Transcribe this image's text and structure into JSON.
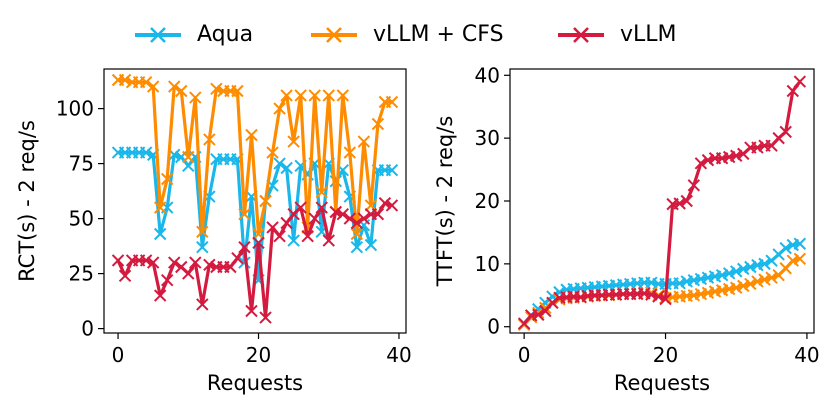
{
  "legend": {
    "items": [
      {
        "label": "Aqua",
        "color": "#1ab7ea"
      },
      {
        "label": "vLLM + CFS",
        "color": "#ff8c00"
      },
      {
        "label": "vLLM",
        "color": "#d41a3f"
      }
    ]
  },
  "chart_data": [
    {
      "type": "line",
      "marker": "x",
      "xlabel": "Requests",
      "ylabel": "RCT(s) - 2 req/s",
      "xlim": [
        -2,
        41
      ],
      "ylim": [
        -2,
        118
      ],
      "xticks": [
        0,
        20,
        40
      ],
      "yticks": [
        0,
        25,
        50,
        75,
        100
      ],
      "grid": false,
      "x": [
        0,
        1,
        2,
        3,
        4,
        5,
        6,
        7,
        8,
        9,
        10,
        11,
        12,
        13,
        14,
        15,
        16,
        17,
        18,
        19,
        20,
        21,
        22,
        23,
        24,
        25,
        26,
        27,
        28,
        29,
        30,
        31,
        32,
        33,
        34,
        35,
        36,
        37,
        38,
        39
      ],
      "series": [
        {
          "name": "Aqua",
          "color": "#1ab7ea",
          "values": [
            80,
            80,
            80,
            80,
            80,
            79,
            43,
            55,
            79,
            78,
            74,
            78,
            37,
            60,
            77,
            77,
            77,
            77,
            30,
            60,
            22,
            58,
            65,
            75,
            73,
            40,
            74,
            70,
            75,
            44,
            75,
            67,
            72,
            60,
            37,
            47,
            38,
            72,
            72,
            72
          ]
        },
        {
          "name": "vLLM + CFS",
          "color": "#ff8c00",
          "values": [
            113,
            113,
            112,
            112,
            112,
            110,
            55,
            68,
            110,
            108,
            78,
            105,
            44,
            86,
            109,
            108,
            108,
            108,
            52,
            88,
            43,
            58,
            80,
            100,
            106,
            85,
            106,
            46,
            106,
            62,
            106,
            53,
            106,
            80,
            43,
            85,
            56,
            93,
            103,
            103
          ]
        },
        {
          "name": "vLLM",
          "color": "#d41a3f",
          "values": [
            31,
            24,
            31,
            31,
            31,
            30,
            15,
            22,
            30,
            28,
            25,
            30,
            11,
            29,
            28,
            28,
            28,
            32,
            37,
            8,
            39,
            5,
            46,
            42,
            48,
            52,
            55,
            42,
            50,
            55,
            40,
            53,
            52,
            50,
            48,
            50,
            52,
            52,
            57,
            56
          ]
        }
      ]
    },
    {
      "type": "line",
      "marker": "x",
      "xlabel": "Requests",
      "ylabel": "TTFT(s) - 2 req/s",
      "xlim": [
        -2,
        41
      ],
      "ylim": [
        -1,
        41
      ],
      "xticks": [
        0,
        20,
        40
      ],
      "yticks": [
        0,
        10,
        20,
        30,
        40
      ],
      "grid": false,
      "x": [
        0,
        1,
        2,
        3,
        4,
        5,
        6,
        7,
        8,
        9,
        10,
        11,
        12,
        13,
        14,
        15,
        16,
        17,
        18,
        19,
        20,
        21,
        22,
        23,
        24,
        25,
        26,
        27,
        28,
        29,
        30,
        31,
        32,
        33,
        34,
        35,
        36,
        37,
        38,
        39
      ],
      "series": [
        {
          "name": "Aqua",
          "color": "#1ab7ea",
          "values": [
            0.5,
            1.8,
            2.8,
            3.8,
            4.8,
            5.5,
            5.9,
            6.0,
            6.1,
            6.2,
            6.3,
            6.4,
            6.5,
            6.6,
            6.7,
            6.8,
            6.9,
            7.0,
            7.0,
            6.8,
            6.8,
            6.9,
            6.9,
            7.2,
            7.4,
            7.6,
            7.8,
            8.0,
            8.2,
            8.5,
            8.8,
            9.2,
            9.5,
            9.8,
            10.0,
            10.5,
            11.5,
            12.5,
            13.0,
            13.2
          ]
        },
        {
          "name": "vLLM + CFS",
          "color": "#ff8c00",
          "values": [
            0.3,
            1.5,
            2.2,
            3.0,
            3.8,
            4.3,
            4.5,
            4.6,
            4.7,
            4.8,
            4.9,
            5.0,
            5.0,
            5.1,
            5.2,
            5.2,
            5.3,
            5.3,
            5.4,
            5.0,
            4.6,
            4.7,
            4.8,
            4.9,
            5.0,
            5.2,
            5.4,
            5.6,
            5.8,
            6.0,
            6.2,
            6.5,
            6.8,
            7.2,
            7.5,
            7.8,
            8.2,
            9.3,
            10.5,
            10.8
          ]
        },
        {
          "name": "vLLM",
          "color": "#d41a3f",
          "values": [
            0.5,
            1.8,
            1.9,
            2.5,
            3.8,
            4.6,
            4.7,
            4.8,
            4.7,
            4.9,
            5.0,
            5.0,
            5.1,
            5.1,
            5.2,
            5.2,
            5.2,
            5.3,
            5.1,
            4.8,
            4.4,
            19.5,
            19.6,
            20.0,
            22.5,
            26.0,
            26.5,
            26.8,
            26.8,
            27.0,
            27.2,
            27.5,
            28.5,
            28.5,
            28.8,
            28.8,
            30.0,
            31.0,
            37.5,
            39.0
          ]
        }
      ]
    }
  ]
}
